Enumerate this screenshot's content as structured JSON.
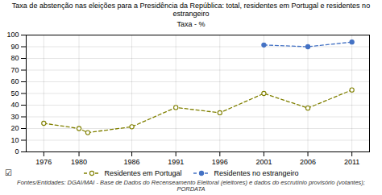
{
  "chart_data": {
    "type": "line",
    "title": "Taxa de abstenção nas eleições para a Presidência da República: total, residentes em Portugal e residentes no estrangeiro",
    "ylabel": "Taxa - %",
    "footnote": "Fontes/Entidades: DGAI/MAI - Base de Dados do Recenseamento Eleitoral (eleitores) e dados do escrutínio provisório (votantes); PORDATA",
    "annotations": [
      "☑"
    ],
    "series": [
      {
        "name": "Residentes em Portugal",
        "color": "#808000",
        "line_style": "dashed",
        "marker": "open_circle",
        "x": [
          1976,
          1980,
          1981,
          1986,
          1991,
          1996,
          2001,
          2006,
          2011
        ],
        "values": [
          24.5,
          20.0,
          16.5,
          21.5,
          38.0,
          33.5,
          50.0,
          37.5,
          53.0
        ]
      },
      {
        "name": "Residentes no estrangeiro",
        "color": "#4472c4",
        "line_style": "dashed",
        "marker": "circle",
        "x": [
          2001,
          2006,
          2011
        ],
        "values": [
          91.5,
          90.0,
          94.0
        ]
      }
    ],
    "xlim": [
      1974,
      2013
    ],
    "xticks": [
      1976,
      1980,
      1986,
      1991,
      1996,
      2001,
      2006,
      2011
    ],
    "ylim": [
      0,
      100
    ],
    "yticks": [
      0,
      10,
      20,
      30,
      40,
      50,
      60,
      70,
      80,
      90,
      100
    ],
    "grid": true,
    "legend": "bottom"
  }
}
